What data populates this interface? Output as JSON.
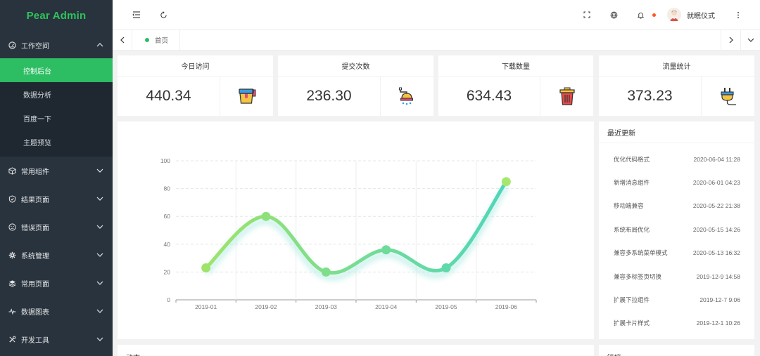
{
  "app": {
    "title": "Pear Admin",
    "brand_color": "#2fc25b",
    "accent": "#2dbd63"
  },
  "sidebar": {
    "workspace": {
      "label": "工作空间",
      "icon": "gauge-icon"
    },
    "workspace_items": [
      {
        "label": "控制后台",
        "active": true
      },
      {
        "label": "数据分析"
      },
      {
        "label": "百度一下"
      },
      {
        "label": "主题预览"
      }
    ],
    "groups": [
      {
        "label": "常用组件",
        "icon": "cube-icon"
      },
      {
        "label": "结果页面",
        "icon": "check-shield-icon"
      },
      {
        "label": "错误页面",
        "icon": "sad-face-icon"
      },
      {
        "label": "系统管理",
        "icon": "gear-icon"
      },
      {
        "label": "常用页面",
        "icon": "layers-icon"
      },
      {
        "label": "数据图表",
        "icon": "pulse-icon"
      },
      {
        "label": "开发工具",
        "icon": "tools-icon"
      }
    ]
  },
  "header": {
    "user_name": "就眠仪式"
  },
  "tabs": {
    "home": "首页"
  },
  "stats": [
    {
      "title": "今日访问",
      "value": "440.34",
      "icon": "paint-bucket-icon"
    },
    {
      "title": "提交次数",
      "value": "236.30",
      "icon": "shower-icon"
    },
    {
      "title": "下载数量",
      "value": "634.43",
      "icon": "trash-bin-icon"
    },
    {
      "title": "流量统计",
      "value": "373.23",
      "icon": "power-plug-icon"
    }
  ],
  "updates": {
    "title": "最近更新",
    "items": [
      {
        "name": "优化代码格式",
        "time": "2020-06-04 11:28"
      },
      {
        "name": "新增消息组件",
        "time": "2020-06-01 04:23"
      },
      {
        "name": "移动端兼容",
        "time": "2020-05-22 21:38"
      },
      {
        "name": "系统布局优化",
        "time": "2020-05-15 14:26"
      },
      {
        "name": "兼容多系统菜单模式",
        "time": "2020-05-13 16:32"
      },
      {
        "name": "兼容多标签页切换",
        "time": "2019-12-9 14:58"
      },
      {
        "name": "扩展下拉组件",
        "time": "2019-12-7 9:06"
      },
      {
        "name": "扩展卡片样式",
        "time": "2019-12-1 10:26"
      }
    ]
  },
  "bottom": {
    "left_title": "动态",
    "right_title": "链接"
  },
  "chart_data": {
    "type": "line",
    "smooth": true,
    "categories": [
      "2019-01",
      "2019-02",
      "2019-03",
      "2019-04",
      "2019-05",
      "2019-06"
    ],
    "values": [
      23,
      60,
      20,
      36,
      23,
      85
    ],
    "ylim": [
      0,
      100
    ],
    "yticks": [
      0,
      20,
      40,
      60,
      80,
      100
    ],
    "grid": true,
    "gradient": [
      "#9fe36b",
      "#4fd6b9"
    ]
  }
}
